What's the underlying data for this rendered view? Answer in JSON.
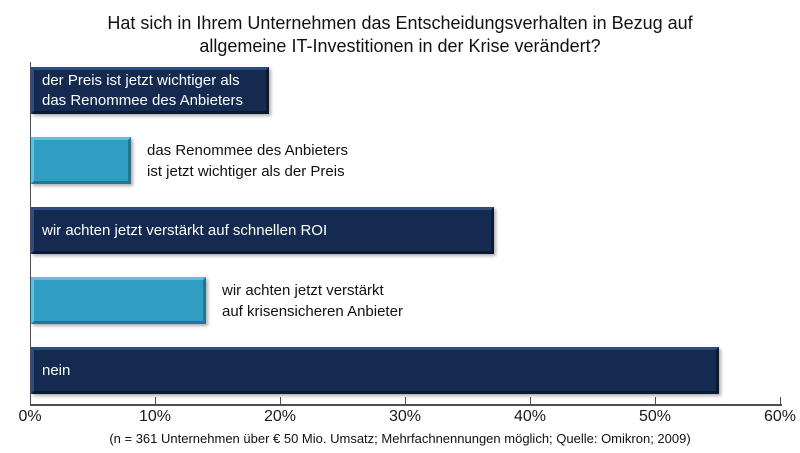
{
  "chart_data": {
    "type": "bar",
    "orientation": "horizontal",
    "title": "Hat sich in Ihrem Unternehmen das Entscheidungsverhalten in Bezug auf\nallgemeine IT-Investitionen in der Krise verändert?",
    "categories": [
      "der Preis ist jetzt wichtiger als das Renommee des Anbieters",
      "das Renommee des Anbieters ist jetzt wichtiger als der Preis",
      "wir achten jetzt verstärkt auf schnellen ROI",
      "wir achten jetzt verstärkt auf krisensicheren Anbieter",
      "nein"
    ],
    "values": [
      19,
      8,
      37,
      14,
      55
    ],
    "unit": "%",
    "xlim": [
      0,
      60
    ],
    "x_ticks": [
      "0%",
      "10%",
      "20%",
      "30%",
      "40%",
      "50%",
      "60%"
    ],
    "grid": false,
    "legend": false,
    "footnote": "(n = 361 Unternehmen über € 50 Mio. Umsatz; Mehrfachnennungen möglich; Quelle: Omikron; 2009)",
    "colors": {
      "dark_navy": "#142A50",
      "light_blue": "#2F9EC2",
      "axis": "#4d4d4d"
    },
    "bars": [
      {
        "label": "der Preis ist jetzt wichtiger als\ndas Renommee des Anbieters",
        "value": 19,
        "color": "dark",
        "label_position": "inside"
      },
      {
        "label": "das Renommee des Anbieters\nist jetzt wichtiger als der Preis",
        "value": 8,
        "color": "light",
        "label_position": "outside"
      },
      {
        "label": "wir achten jetzt verstärkt auf schnellen ROI",
        "value": 37,
        "color": "dark",
        "label_position": "inside"
      },
      {
        "label": "wir achten jetzt verstärkt\nauf krisensicheren Anbieter",
        "value": 14,
        "color": "light",
        "label_position": "outside"
      },
      {
        "label": "nein",
        "value": 55,
        "color": "dark",
        "label_position": "inside"
      }
    ]
  }
}
